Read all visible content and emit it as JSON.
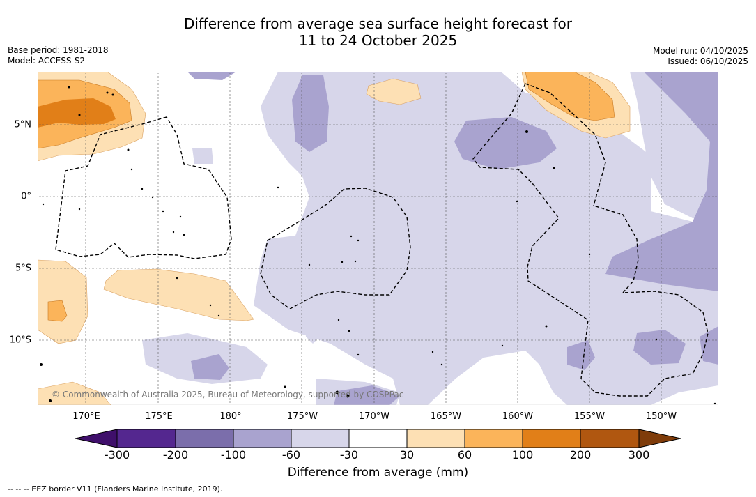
{
  "title": {
    "line1": "Difference from average sea surface height forecast for",
    "line2": "11 to 24 October 2025"
  },
  "meta": {
    "base_period": "Base period: 1981-2018",
    "model": "Model: ACCESS-S2",
    "model_run": "Model run: 04/10/2025",
    "issued": "Issued: 06/10/2025"
  },
  "map": {
    "lon_labels": [
      "170°E",
      "175°E",
      "180°",
      "175°W",
      "170°W",
      "165°W",
      "160°W",
      "155°W",
      "150°W"
    ],
    "lat_labels": [
      "5°N",
      "0°",
      "5°S",
      "10°S"
    ],
    "copyright": "© Commonwealth of Australia 2025, Bureau of Meteorology, supported by COSPPac"
  },
  "colorbar": {
    "ticks": [
      "-300",
      "-200",
      "-100",
      "-60",
      "-30",
      "30",
      "60",
      "100",
      "200",
      "300"
    ],
    "colors": [
      "#3f0f6b",
      "#54278f",
      "#7b6eab",
      "#a9a3cf",
      "#d7d6ea",
      "#ffffff",
      "#fde0b4",
      "#fbb45a",
      "#e17f18",
      "#b05710",
      "#7f3c0a"
    ],
    "label": "Difference from average (mm)"
  },
  "footer": "-- -- -- EEZ border V11 (Flanders Marine Institute, 2019)."
}
